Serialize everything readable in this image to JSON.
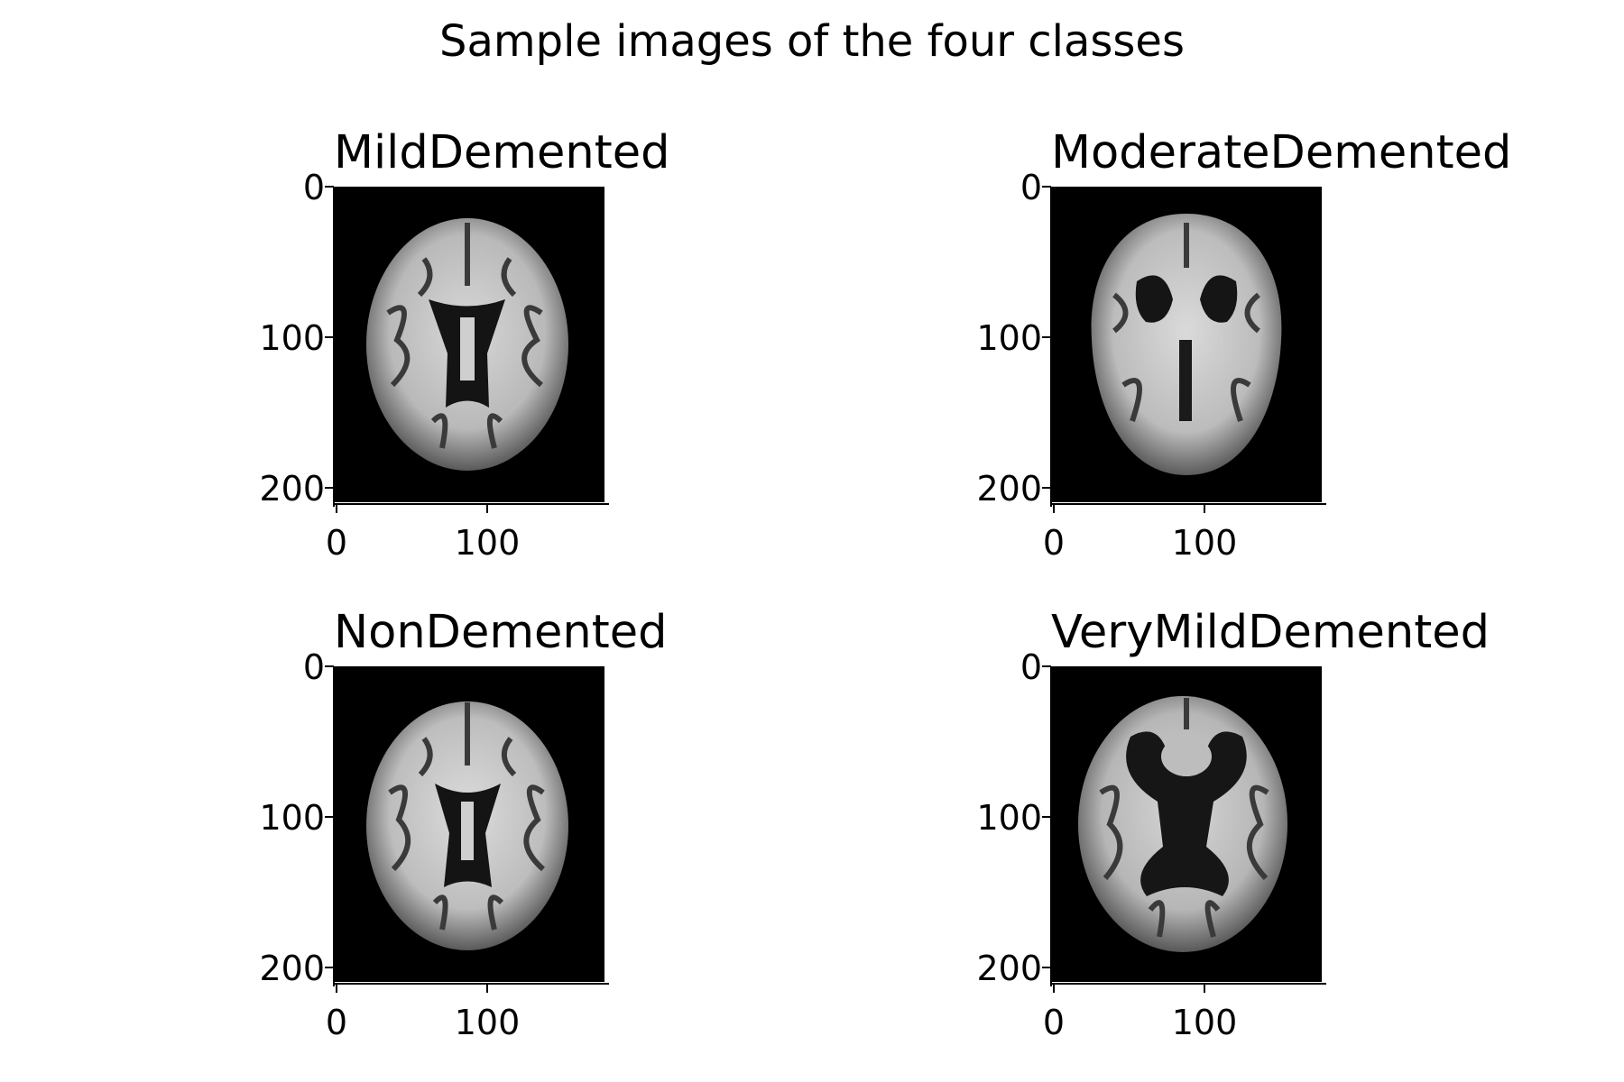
{
  "figure": {
    "title": "Sample images of the four classes"
  },
  "panels": [
    {
      "name": "mild",
      "title": "MildDemented"
    },
    {
      "name": "moderate",
      "title": "ModerateDemented"
    },
    {
      "name": "non",
      "title": "NonDemented"
    },
    {
      "name": "verymild",
      "title": "VeryMildDemented"
    }
  ],
  "axes": {
    "yticks": [
      "0",
      "100",
      "200"
    ],
    "xticks": [
      "0",
      "100"
    ]
  }
}
